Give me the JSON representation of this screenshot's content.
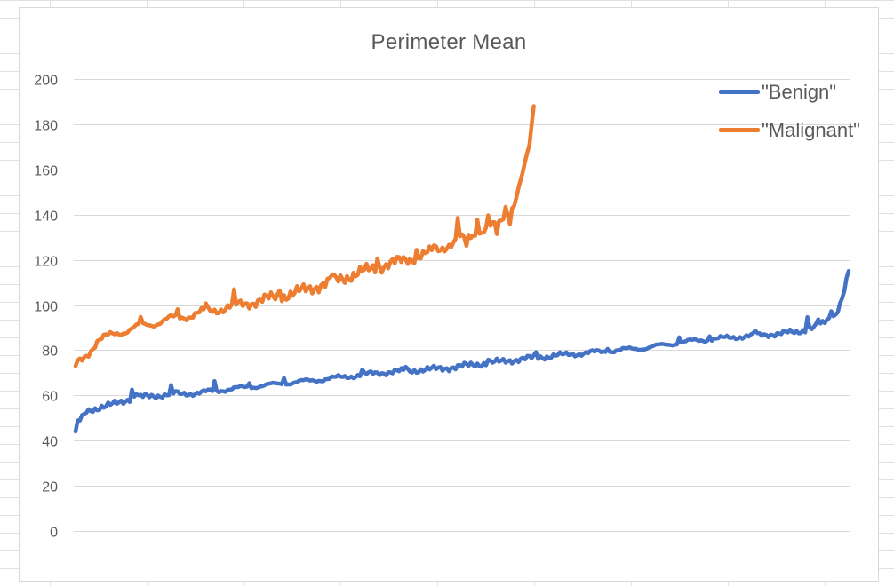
{
  "chart_data": {
    "type": "line",
    "title": "Perimeter Mean",
    "xlabel": "",
    "ylabel": "",
    "ylim": [
      0,
      200
    ],
    "yticks": [
      0,
      20,
      40,
      60,
      80,
      100,
      120,
      140,
      160,
      180,
      200
    ],
    "grid": true,
    "legend_position": "top-right",
    "series": [
      {
        "name": "\"Benign\"",
        "color": "#4472c4",
        "count": 357,
        "profile": [
          [
            0,
            44
          ],
          [
            1,
            48
          ],
          [
            3,
            50
          ],
          [
            5,
            53
          ],
          [
            8,
            54
          ],
          [
            14,
            55
          ],
          [
            20,
            57
          ],
          [
            27,
            59
          ],
          [
            38,
            60
          ],
          [
            55,
            61
          ],
          [
            73,
            63
          ],
          [
            93,
            65
          ],
          [
            113,
            67
          ],
          [
            140,
            70
          ],
          [
            170,
            72
          ],
          [
            196,
            75
          ],
          [
            214,
            77
          ],
          [
            238,
            79
          ],
          [
            262,
            81
          ],
          [
            283,
            84
          ],
          [
            306,
            86
          ],
          [
            332,
            88
          ],
          [
            343,
            91
          ],
          [
            350,
            96
          ],
          [
            353,
            103
          ],
          [
            356,
            115
          ]
        ],
        "spikes": [
          [
            26,
            4
          ],
          [
            28,
            2
          ],
          [
            44,
            3
          ],
          [
            46,
            1
          ],
          [
            64,
            4
          ],
          [
            80,
            2
          ],
          [
            96,
            3
          ],
          [
            132,
            2
          ],
          [
            152,
            2
          ],
          [
            190,
            2
          ],
          [
            212,
            2
          ],
          [
            245,
            2
          ],
          [
            278,
            3
          ],
          [
            292,
            2
          ],
          [
            313,
            2
          ],
          [
            337,
            6
          ],
          [
            342,
            3
          ],
          [
            348,
            4
          ]
        ]
      },
      {
        "name": "\"Malignant\"",
        "color": "#ed7d31",
        "count": 212,
        "profile": [
          [
            0,
            73
          ],
          [
            5,
            78
          ],
          [
            10,
            84
          ],
          [
            20,
            88
          ],
          [
            40,
            93
          ],
          [
            60,
            97
          ],
          [
            80,
            101
          ],
          [
            100,
            105
          ],
          [
            120,
            111
          ],
          [
            140,
            117
          ],
          [
            160,
            122
          ],
          [
            175,
            128
          ],
          [
            185,
            132
          ],
          [
            195,
            136
          ],
          [
            198,
            140
          ],
          [
            202,
            145
          ],
          [
            206,
            158
          ],
          [
            209,
            170
          ],
          [
            211,
            188
          ]
        ],
        "spikes": [
          [
            30,
            3
          ],
          [
            47,
            3
          ],
          [
            60,
            3
          ],
          [
            73,
            5
          ],
          [
            94,
            4
          ],
          [
            118,
            3
          ],
          [
            139,
            5
          ],
          [
            157,
            3
          ],
          [
            165,
            2
          ],
          [
            176,
            10
          ],
          [
            180,
            -5
          ],
          [
            185,
            8
          ],
          [
            190,
            5
          ],
          [
            194,
            -5
          ],
          [
            198,
            4
          ],
          [
            200,
            -5
          ]
        ]
      }
    ]
  }
}
